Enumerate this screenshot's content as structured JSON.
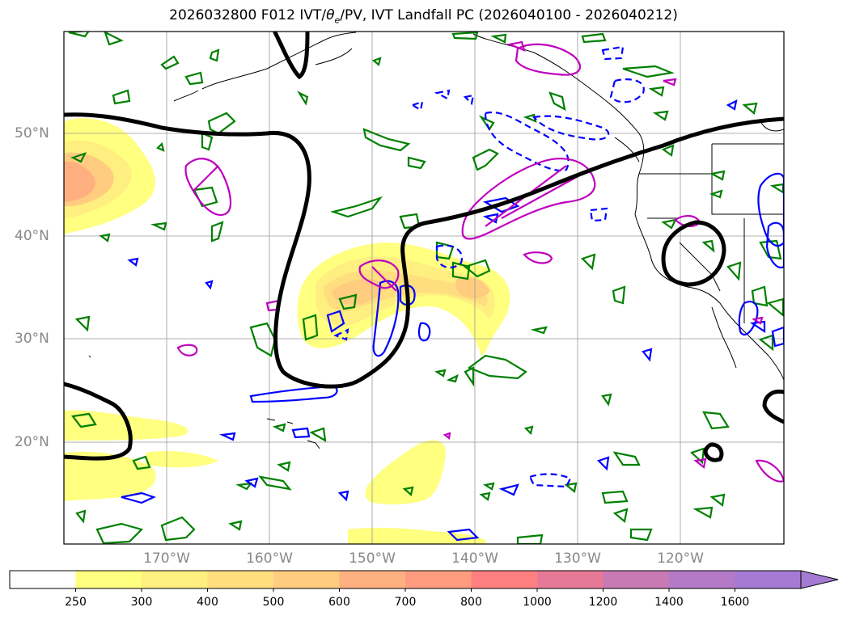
{
  "title": {
    "prefix": "2026032800 F012 IVT/",
    "theta": "θ",
    "theta_sub": "e",
    "suffix": "/PV, IVT Landfall PC (2026040100 - 2026040212)"
  },
  "map": {
    "lat_labels": [
      "50°N",
      "40°N",
      "30°N",
      "20°N"
    ],
    "lon_labels": [
      "170°W",
      "160°W",
      "150°W",
      "140°W",
      "130°W",
      "120°W"
    ],
    "colors": {
      "height_contour": "#000000",
      "green_contour": "#008000",
      "blue_contour": "#0000ff",
      "magenta_contour": "#bf00bf",
      "coastline": "#000000",
      "grid": "#999999"
    }
  },
  "colorbar": {
    "ticks": [
      "250",
      "300",
      "400",
      "500",
      "600",
      "700",
      "800",
      "1000",
      "1200",
      "1400",
      "1600"
    ],
    "colors": [
      "#ffffff",
      "#ffff80",
      "#ffee80",
      "#ffde80",
      "#ffcc80",
      "#ffb080",
      "#ff9c80",
      "#ff8080",
      "#e67a96",
      "#c87ab4",
      "#b47ac8",
      "#a57ad2"
    ],
    "extend": "max"
  }
}
